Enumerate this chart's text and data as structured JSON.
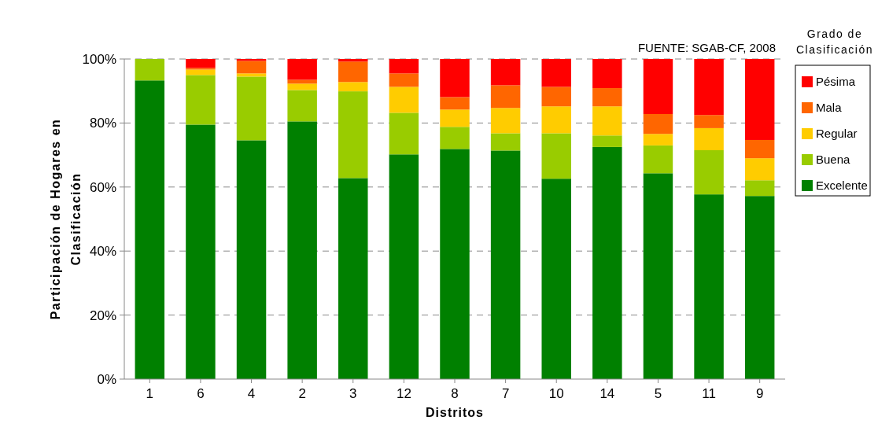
{
  "chart_data": {
    "type": "bar",
    "stacked": true,
    "xlabel": "Distritos",
    "ylabel": "Participación de Hogares en Clasificación",
    "legend_title": "Grado de Clasificación",
    "legend": "right",
    "grid": "y",
    "annotations": [
      "FUENTE: SGAB-CF, 2008"
    ],
    "categories": [
      "1",
      "6",
      "4",
      "2",
      "3",
      "12",
      "8",
      "7",
      "10",
      "14",
      "5",
      "11",
      "9"
    ],
    "ylim": [
      0,
      100
    ],
    "yticks": [
      {
        "value": 0,
        "label": "0%"
      },
      {
        "value": 20,
        "label": "20%"
      },
      {
        "value": 40,
        "label": "40%"
      },
      {
        "value": 60,
        "label": "60%"
      },
      {
        "value": 80,
        "label": "80%"
      },
      {
        "value": 100,
        "label": "100%"
      }
    ],
    "series": [
      {
        "name": "Excelente",
        "color": "#008000",
        "values": [
          93.3,
          79.5,
          74.6,
          80.5,
          62.8,
          70.2,
          71.9,
          71.4,
          62.6,
          72.5,
          64.3,
          57.7,
          57.2
        ]
      },
      {
        "name": "Buena",
        "color": "#99cc00",
        "values": [
          6.7,
          15.5,
          19.9,
          9.8,
          27.1,
          13.0,
          6.9,
          5.4,
          14.2,
          3.6,
          8.7,
          13.8,
          4.9
        ]
      },
      {
        "name": "Regular",
        "color": "#ffcc00",
        "values": [
          0,
          1.7,
          1.0,
          2.0,
          2.9,
          8.1,
          5.4,
          7.9,
          8.4,
          9.1,
          3.6,
          6.9,
          6.9
        ]
      },
      {
        "name": "Mala",
        "color": "#ff6600",
        "values": [
          0,
          0.5,
          3.9,
          1.2,
          6.4,
          4.2,
          3.9,
          7.1,
          6.1,
          5.7,
          6.2,
          4.1,
          5.7
        ]
      },
      {
        "name": "Pésima",
        "color": "#ff0000",
        "values": [
          0,
          2.8,
          0.6,
          6.5,
          0.8,
          4.5,
          11.9,
          8.2,
          8.7,
          9.1,
          17.2,
          17.5,
          25.3
        ]
      }
    ]
  }
}
